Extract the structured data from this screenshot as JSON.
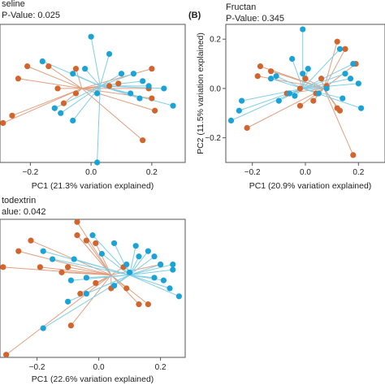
{
  "colors": {
    "orange": "#d2652d",
    "blue": "#1ba3d6",
    "orange_line": "#e0a080",
    "blue_line": "#80cde6"
  },
  "chart_data": [
    {
      "type": "scatter",
      "panel_label": "",
      "title": "seline",
      "subtitle": "P-Value: 0.025",
      "xlabel": "PC1 (21.3% variation explained)",
      "ylabel": "",
      "xlim": [
        -0.3,
        0.31
      ],
      "ylim": [
        -0.32,
        0.24
      ],
      "xticks": [
        -0.2,
        0.0,
        0.2
      ],
      "xtick_labels": [
        "−0.2",
        "0.0",
        "0.2"
      ],
      "yticks": [],
      "ytick_labels": [],
      "grid": false,
      "centroids": [
        {
          "group": "orange",
          "x": -0.03,
          "y": -0.02
        },
        {
          "group": "blue",
          "x": 0.03,
          "y": -0.01
        }
      ],
      "series": [
        {
          "group": "orange",
          "points": [
            [
              -0.21,
              0.07
            ],
            [
              -0.14,
              0.07
            ],
            [
              -0.05,
              0.06
            ],
            [
              -0.24,
              0.02
            ],
            [
              -0.26,
              -0.13
            ],
            [
              -0.29,
              -0.16
            ],
            [
              -0.09,
              -0.08
            ],
            [
              -0.11,
              -0.02
            ],
            [
              0.09,
              0.0
            ],
            [
              0.2,
              0.06
            ],
            [
              0.19,
              -0.02
            ],
            [
              0.2,
              -0.06
            ],
            [
              0.21,
              -0.11
            ],
            [
              0.17,
              -0.23
            ],
            [
              0.06,
              -0.01
            ],
            [
              -0.05,
              -0.04
            ]
          ]
        },
        {
          "group": "blue",
          "points": [
            [
              0.0,
              0.19
            ],
            [
              0.06,
              0.12
            ],
            [
              -0.16,
              0.09
            ],
            [
              -0.02,
              0.06
            ],
            [
              -0.06,
              0.04
            ],
            [
              0.1,
              0.04
            ],
            [
              0.14,
              0.04
            ],
            [
              0.17,
              0.01
            ],
            [
              0.19,
              -0.01
            ],
            [
              0.24,
              -0.02
            ],
            [
              0.27,
              -0.09
            ],
            [
              0.16,
              -0.06
            ],
            [
              -0.12,
              -0.1
            ],
            [
              -0.1,
              -0.12
            ],
            [
              -0.06,
              -0.15
            ],
            [
              0.02,
              -0.32
            ],
            [
              0.13,
              -0.04
            ],
            [
              0.02,
              -0.04
            ]
          ]
        }
      ]
    },
    {
      "type": "scatter",
      "panel_label": "(B)",
      "title": "Fructan",
      "subtitle": "P-Value: 0.345",
      "xlabel": "PC1 (20.9% variation explained)",
      "ylabel": "PC2 (11.5% variation explained)",
      "xlim": [
        -0.3,
        0.3
      ],
      "ylim": [
        -0.3,
        0.26
      ],
      "xticks": [
        -0.2,
        0.0,
        0.2
      ],
      "xtick_labels": [
        "−0.2",
        "0.0",
        "0.2"
      ],
      "yticks": [
        0.2,
        0.0,
        -0.2
      ],
      "ytick_labels": [
        "0.2",
        "0.0",
        "−0.2"
      ],
      "grid": false,
      "centroids": [
        {
          "group": "orange",
          "x": 0.07,
          "y": 0.0
        },
        {
          "group": "blue",
          "x": -0.01,
          "y": 0.0
        }
      ],
      "series": [
        {
          "group": "orange",
          "points": [
            [
              0.12,
              0.19
            ],
            [
              0.15,
              0.16
            ],
            [
              0.19,
              0.1
            ],
            [
              -0.17,
              0.09
            ],
            [
              -0.18,
              0.05
            ],
            [
              -0.13,
              0.07
            ],
            [
              0.0,
              0.04
            ],
            [
              0.06,
              0.04
            ],
            [
              0.08,
              0.01
            ],
            [
              -0.02,
              0.0
            ],
            [
              -0.07,
              -0.02
            ],
            [
              0.03,
              -0.05
            ],
            [
              -0.02,
              -0.07
            ],
            [
              0.12,
              -0.08
            ],
            [
              -0.22,
              -0.16
            ],
            [
              0.13,
              -0.09
            ],
            [
              0.18,
              -0.27
            ],
            [
              0.04,
              -0.02
            ]
          ]
        },
        {
          "group": "blue",
          "points": [
            [
              -0.01,
              0.24
            ],
            [
              0.13,
              0.16
            ],
            [
              -0.05,
              0.12
            ],
            [
              0.18,
              0.1
            ],
            [
              0.01,
              0.08
            ],
            [
              -0.01,
              0.06
            ],
            [
              0.15,
              0.06
            ],
            [
              -0.11,
              0.05
            ],
            [
              -0.13,
              0.04
            ],
            [
              0.17,
              0.04
            ],
            [
              0.2,
              0.02
            ],
            [
              0.08,
              0.0
            ],
            [
              -0.06,
              -0.02
            ],
            [
              -0.24,
              -0.05
            ],
            [
              -0.25,
              -0.09
            ],
            [
              0.21,
              -0.08
            ],
            [
              -0.28,
              -0.13
            ],
            [
              -0.1,
              -0.05
            ],
            [
              0.05,
              -0.02
            ],
            [
              -0.04,
              -0.03
            ],
            [
              0.14,
              -0.04
            ]
          ]
        }
      ]
    },
    {
      "type": "scatter",
      "panel_label": "",
      "title": "todextrin",
      "subtitle": "alue: 0.042",
      "xlabel": "PC1 (22.6% variation explained)",
      "ylabel": "",
      "xlim": [
        -0.32,
        0.28
      ],
      "ylim": [
        -0.3,
        0.22
      ],
      "xticks": [
        -0.2,
        0.0,
        0.2
      ],
      "xtick_labels": [
        "−0.2",
        "0.0",
        "0.2"
      ],
      "yticks": [],
      "ytick_labels": [],
      "grid": false,
      "centroids": [
        {
          "group": "orange",
          "x": 0.04,
          "y": 0.01
        },
        {
          "group": "blue",
          "x": 0.1,
          "y": 0.01
        }
      ],
      "series": [
        {
          "group": "orange",
          "points": [
            [
              -0.07,
              0.21
            ],
            [
              -0.07,
              0.16
            ],
            [
              -0.22,
              0.14
            ],
            [
              -0.04,
              0.14
            ],
            [
              -0.01,
              0.13
            ],
            [
              -0.26,
              0.1
            ],
            [
              -0.31,
              0.04
            ],
            [
              -0.19,
              0.04
            ],
            [
              -0.1,
              0.04
            ],
            [
              -0.12,
              0.02
            ],
            [
              0.08,
              0.04
            ],
            [
              -0.01,
              -0.02
            ],
            [
              0.09,
              -0.04
            ],
            [
              -0.06,
              -0.06
            ],
            [
              0.04,
              -0.04
            ],
            [
              0.13,
              -0.1
            ],
            [
              0.16,
              -0.1
            ],
            [
              -0.09,
              -0.18
            ],
            [
              -0.3,
              -0.29
            ],
            [
              0.2,
              0.05
            ]
          ]
        },
        {
          "group": "blue",
          "points": [
            [
              -0.02,
              0.16
            ],
            [
              0.05,
              0.13
            ],
            [
              0.12,
              0.12
            ],
            [
              0.16,
              0.1
            ],
            [
              -0.18,
              0.1
            ],
            [
              0.01,
              0.09
            ],
            [
              -0.15,
              0.07
            ],
            [
              -0.08,
              0.07
            ],
            [
              0.09,
              0.05
            ],
            [
              0.13,
              0.08
            ],
            [
              0.18,
              0.08
            ],
            [
              0.24,
              0.05
            ],
            [
              0.2,
              0.05
            ],
            [
              0.24,
              0.03
            ],
            [
              -0.04,
              0.0
            ],
            [
              0.1,
              0.02
            ],
            [
              0.18,
              0.0
            ],
            [
              0.21,
              -0.01
            ],
            [
              0.23,
              -0.04
            ],
            [
              0.26,
              -0.07
            ],
            [
              -0.09,
              -0.01
            ],
            [
              -0.04,
              -0.06
            ],
            [
              -0.1,
              -0.09
            ],
            [
              0.05,
              -0.03
            ],
            [
              -0.18,
              -0.19
            ]
          ]
        }
      ]
    }
  ]
}
